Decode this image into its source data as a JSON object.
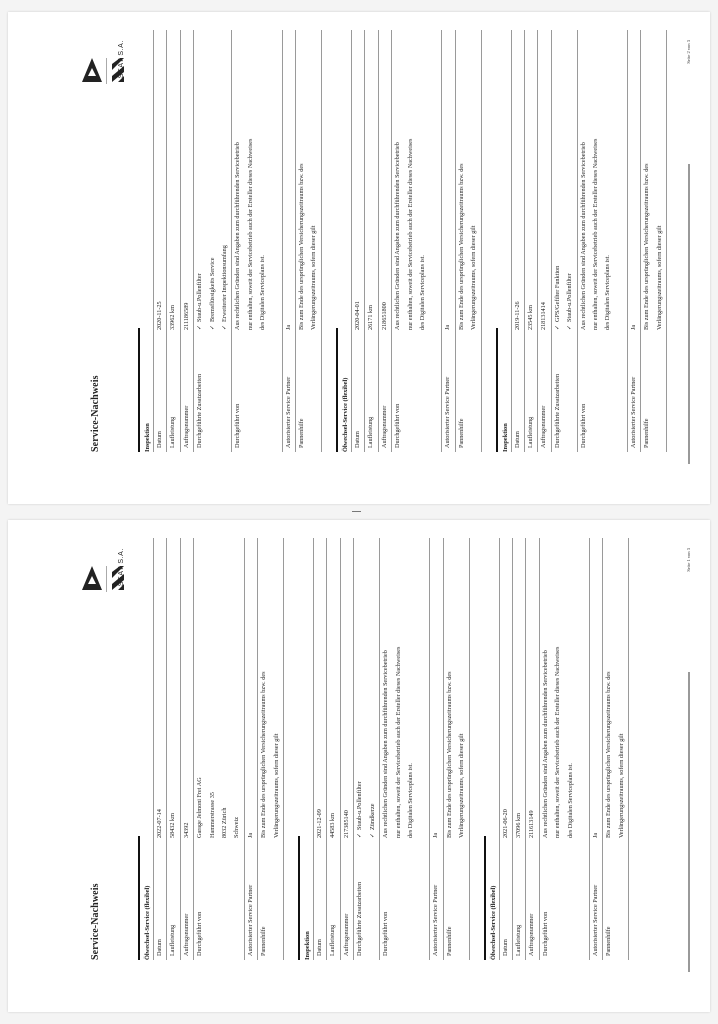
{
  "document": {
    "pages": [
      {
        "title": "Service-Nachweis",
        "brand": "SEAT S.A.",
        "page_label": "Seite 1 von 3",
        "sections": [
          {
            "heading": "Ölwechsel-Service (flexibel)",
            "rows": [
              {
                "label": "Datum",
                "lines": [
                  "2022-07-14"
                ]
              },
              {
                "label": "Laufleistung",
                "lines": [
                  "58432 km"
                ]
              },
              {
                "label": "Auftragsnummer",
                "lines": [
                  "34392"
                ]
              },
              {
                "label": "Durchgeführt von",
                "lines": [
                  "Garage Jelmoni Frei AG",
                  "Hammerstrasse 35",
                  "8032 Zürich",
                  "Schweiz"
                ]
              },
              {
                "label": "Autorisierter Service Partner",
                "lines": [
                  "Ja"
                ]
              },
              {
                "label": "Pannenhilfe",
                "lines": [
                  "Bis zum Ende des ursprünglichen Versicherungszeitraums bzw. des",
                  "Verlängerungszeitraums, sofern dieser gilt"
                ]
              }
            ]
          },
          {
            "heading": "Inspektion",
            "rows": [
              {
                "label": "Datum",
                "lines": [
                  "2021-12-09"
                ]
              },
              {
                "label": "Laufleistung",
                "lines": [
                  "44583 km"
                ]
              },
              {
                "label": "Auftragsnummer",
                "lines": [
                  "217385140"
                ]
              },
              {
                "label": "Durchgeführte Zusatzarbeiten",
                "checks": [
                  "Staub-u.Pollenfilter",
                  "Zündkerze"
                ]
              },
              {
                "label": "Durchgeführt von",
                "tall": true,
                "lines": [
                  "Aus rechtlichen Gründen sind Angaben zum durchführenden Servicebetrieb",
                  "nur enthalten, soweit der Servicebetrieb auch der Ersteller dieses Nachweises",
                  "des Digitalen Serviceplans ist."
                ]
              },
              {
                "label": "Autorisierter Service Partner",
                "lines": [
                  "Ja"
                ]
              },
              {
                "label": "Pannenhilfe",
                "lines": [
                  "Bis zum Ende des ursprünglichen Versicherungszeitraums bzw. des",
                  "Verlängerungszeitraums, sofern dieser gilt"
                ]
              }
            ]
          },
          {
            "heading": "Ölwechsel-Service (flexibel)",
            "rows": [
              {
                "label": "Datum",
                "lines": [
                  "2021-06-20"
                ]
              },
              {
                "label": "Laufleistung",
                "lines": [
                  "37096 km"
                ]
              },
              {
                "label": "Auftragsnummer",
                "lines": [
                  "211613149"
                ]
              },
              {
                "label": "Durchgeführt von",
                "tall": true,
                "lines": [
                  "Aus rechtlichen Gründen sind Angaben zum durchführenden Servicebetrieb",
                  "nur enthalten, soweit der Servicebetrieb auch der Ersteller dieses Nachweises",
                  "des Digitalen Serviceplans ist."
                ]
              },
              {
                "label": "Autorisierter Service Partner",
                "lines": [
                  "Ja"
                ]
              },
              {
                "label": "Pannenhilfe",
                "lines": [
                  "Bis zum Ende des ursprünglichen Versicherungszeitraums bzw. des",
                  "Verlängerungszeitraums, sofern dieser gilt"
                ]
              }
            ]
          }
        ]
      },
      {
        "title": "Service-Nachweis",
        "brand": "SEAT S.A.",
        "page_label": "Seite 2 von 3",
        "sections": [
          {
            "heading": "Inspektion",
            "rows": [
              {
                "label": "Datum",
                "lines": [
                  "2020-11-25"
                ]
              },
              {
                "label": "Laufleistung",
                "lines": [
                  "33962 km"
                ]
              },
              {
                "label": "Auftragsnummer",
                "lines": [
                  "211186589"
                ]
              },
              {
                "label": "Durchgeführte Zusatzarbeiten",
                "checks": [
                  "Staub-u.Pollenfilter",
                  "Bremsflüssigkeits Service",
                  "Erweiterter Inspektionsumfang"
                ]
              },
              {
                "label": "Durchgeführt von",
                "tall": true,
                "lines": [
                  "Aus rechtlichen Gründen sind Angaben zum durchführenden Servicebetrieb",
                  "nur enthalten, soweit der Servicebetrieb auch der Ersteller dieses Nachweises",
                  "des Digitalen Serviceplans ist."
                ]
              },
              {
                "label": "Autorisierter Service Partner",
                "lines": [
                  "Ja"
                ]
              },
              {
                "label": "Pannenhilfe",
                "lines": [
                  "Bis zum Ende des ursprünglichen Versicherungszeitraums bzw. des",
                  "Verlängerungszeitraums, sofern dieser gilt"
                ]
              }
            ]
          },
          {
            "heading": "Ölwechsel-Service (flexibel)",
            "rows": [
              {
                "label": "Datum",
                "lines": [
                  "2020-04-01"
                ]
              },
              {
                "label": "Laufleistung",
                "lines": [
                  "26171 km"
                ]
              },
              {
                "label": "Auftragsnummer",
                "lines": [
                  "218651800"
                ]
              },
              {
                "label": "Durchgeführt von",
                "tall": true,
                "lines": [
                  "Aus rechtlichen Gründen sind Angaben zum durchführenden Servicebetrieb",
                  "nur enthalten, soweit der Servicebetrieb auch der Ersteller dieses Nachweises",
                  "des Digitalen Serviceplans ist."
                ]
              },
              {
                "label": "Autorisierter Service Partner",
                "lines": [
                  "Ja"
                ]
              },
              {
                "label": "Pannenhilfe",
                "lines": [
                  "Bis zum Ende des ursprünglichen Versicherungszeitraums bzw. des",
                  "Verlängerungszeitraums, sofern dieser gilt"
                ]
              }
            ]
          },
          {
            "heading": "Inspektion",
            "rows": [
              {
                "label": "Datum",
                "lines": [
                  "2019-11-26"
                ]
              },
              {
                "label": "Laufleistung",
                "lines": [
                  "23545 km"
                ]
              },
              {
                "label": "Auftragsnummer",
                "lines": [
                  "218131414"
                ]
              },
              {
                "label": "Durchgeführte Zusatzarbeiten",
                "checks": [
                  "GPS/Gefilter Funktion",
                  "Staub-u.Pollenfilter"
                ]
              },
              {
                "label": "Durchgeführt von",
                "tall": true,
                "lines": [
                  "Aus rechtlichen Gründen sind Angaben zum durchführenden Servicebetrieb",
                  "nur enthalten, soweit der Servicebetrieb auch der Ersteller dieses Nachweises",
                  "des Digitalen Serviceplans ist."
                ]
              },
              {
                "label": "Autorisierter Service Partner",
                "lines": [
                  "Ja"
                ]
              },
              {
                "label": "Pannenhilfe",
                "lines": [
                  "Bis zum Ende des ursprünglichen Versicherungszeitraums bzw. des",
                  "Verlängerungszeitraums, sofern dieser gilt"
                ]
              }
            ]
          }
        ]
      }
    ]
  }
}
